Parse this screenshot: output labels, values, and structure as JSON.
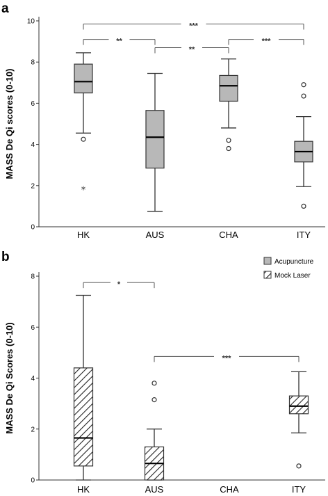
{
  "chart_data": [
    {
      "panel": "a",
      "type": "box",
      "ylabel": "MASS De Qi scores (0-10)",
      "ylim": [
        0,
        10
      ],
      "yticks": [
        0,
        2,
        4,
        6,
        8,
        10
      ],
      "categories": [
        "HK",
        "AUS",
        "CHA",
        "ITY"
      ],
      "series": [
        {
          "fill": "#b8b8b8",
          "boxes": [
            {
              "category": "HK",
              "whisker_low": 4.55,
              "q1": 6.5,
              "median": 7.05,
              "q3": 7.9,
              "whisker_high": 8.45,
              "outliers": [
                4.25
              ],
              "extremes": [
                1.8
              ]
            },
            {
              "category": "AUS",
              "whisker_low": 0.75,
              "q1": 2.85,
              "median": 4.35,
              "q3": 5.65,
              "whisker_high": 7.45,
              "outliers": [],
              "extremes": []
            },
            {
              "category": "CHA",
              "whisker_low": 4.8,
              "q1": 6.1,
              "median": 6.85,
              "q3": 7.35,
              "whisker_high": 8.15,
              "outliers": [
                4.2,
                3.8
              ],
              "extremes": []
            },
            {
              "category": "ITY",
              "whisker_low": 1.95,
              "q1": 3.15,
              "median": 3.65,
              "q3": 4.15,
              "whisker_high": 5.35,
              "outliers": [
                6.35,
                6.9,
                1.0
              ],
              "extremes": []
            }
          ]
        }
      ],
      "significance": [
        {
          "from": "HK",
          "to": "ITY",
          "label": "***",
          "y": 9.85
        },
        {
          "from": "HK",
          "to": "AUS",
          "label": "**",
          "y": 9.1
        },
        {
          "from": "AUS",
          "to": "CHA",
          "label": "**",
          "y": 8.7
        },
        {
          "from": "CHA",
          "to": "ITY",
          "label": "***",
          "y": 9.1
        }
      ]
    },
    {
      "panel": "b",
      "type": "box",
      "ylabel": "MASS De Qi Scores (0-10)",
      "ylim": [
        0,
        8
      ],
      "yticks": [
        0,
        2,
        4,
        6,
        8
      ],
      "categories": [
        "HK",
        "AUS",
        "CHA",
        "ITY"
      ],
      "legend": {
        "position": "top-right",
        "entries": [
          {
            "label": "Acupuncture",
            "pattern": "solid",
            "color": "#b8b8b8"
          },
          {
            "label": "Mock Laser",
            "pattern": "hatch",
            "color": "#ffffff"
          }
        ]
      },
      "series": [
        {
          "name": "Mock Laser",
          "fill": "hatch",
          "boxes": [
            {
              "category": "HK",
              "whisker_low": 0.0,
              "q1": 0.55,
              "median": 1.65,
              "q3": 4.4,
              "whisker_high": 7.25,
              "outliers": [],
              "extremes": []
            },
            {
              "category": "AUS",
              "whisker_low": 0.0,
              "q1": 0.0,
              "median": 0.65,
              "q3": 1.3,
              "whisker_high": 2.0,
              "outliers": [
                3.15,
                3.8
              ],
              "extremes": []
            },
            {
              "category": "ITY",
              "whisker_low": 1.85,
              "q1": 2.6,
              "median": 2.9,
              "q3": 3.3,
              "whisker_high": 4.25,
              "outliers": [
                0.55
              ],
              "extremes": []
            }
          ]
        }
      ],
      "significance": [
        {
          "from": "HK",
          "to": "AUS",
          "label": "*",
          "y": 7.75
        },
        {
          "from": "AUS",
          "to": "ITY",
          "label": "***",
          "y": 4.85
        }
      ]
    }
  ],
  "panel_labels": [
    "a",
    "b"
  ],
  "colors": {
    "box_fill": "#b8b8b8",
    "stroke": "#333333",
    "bracket": "#555555"
  }
}
